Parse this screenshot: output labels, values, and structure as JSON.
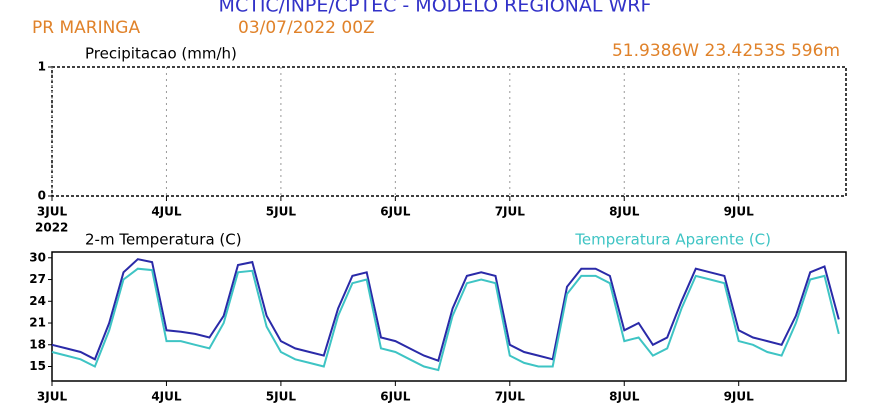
{
  "header": {
    "title": "MCTIC/INPE/CPTEC - MODELO REGIONAL WRF",
    "location": "PR MARINGA",
    "date": "03/07/2022 00Z",
    "coordinates": "51.9386W 23.4253S 596m",
    "year_label": "2022"
  },
  "chart_data": [
    {
      "type": "line",
      "title": "Precipitacao (mm/h)",
      "xlim": [
        0,
        166.5
      ],
      "ylim": [
        0,
        1
      ],
      "yticks": [
        0,
        1
      ],
      "grid": true,
      "xticks": [
        {
          "value": 0,
          "label": "3JUL"
        },
        {
          "value": 24,
          "label": "4JUL"
        },
        {
          "value": 48,
          "label": "5JUL"
        },
        {
          "value": 72,
          "label": "6JUL"
        },
        {
          "value": 96,
          "label": "7JUL"
        },
        {
          "value": 120,
          "label": "8JUL"
        },
        {
          "value": 144,
          "label": "9JUL"
        }
      ]
    },
    {
      "type": "line",
      "xlim": [
        0,
        166.5
      ],
      "ylim": [
        13,
        30.8
      ],
      "yticks": [
        15,
        18,
        21,
        24,
        27,
        30
      ],
      "grid": false,
      "xticks": [
        {
          "value": 0,
          "label": "3JUL"
        },
        {
          "value": 24,
          "label": "4JUL"
        },
        {
          "value": 48,
          "label": "5JUL"
        },
        {
          "value": 72,
          "label": "6JUL"
        },
        {
          "value": 96,
          "label": "7JUL"
        },
        {
          "value": 120,
          "label": "8JUL"
        },
        {
          "value": 144,
          "label": "9JUL"
        }
      ],
      "x": [
        0,
        3,
        6,
        9,
        12,
        15,
        18,
        21,
        24,
        27,
        30,
        33,
        36,
        39,
        42,
        45,
        48,
        51,
        54,
        57,
        60,
        63,
        66,
        69,
        72,
        75,
        78,
        81,
        84,
        87,
        90,
        93,
        96,
        99,
        102,
        105,
        108,
        111,
        114,
        117,
        120,
        123,
        126,
        129,
        132,
        135,
        138,
        141,
        144,
        147,
        150,
        153,
        156,
        159,
        162,
        165
      ],
      "series": [
        {
          "name": "2-m Temperatura (C)",
          "color": "#2a2aa8",
          "values": [
            18,
            17.5,
            17,
            16,
            21,
            28,
            29.8,
            29.4,
            20,
            19.8,
            19.5,
            19,
            22,
            29,
            29.4,
            22,
            18.5,
            17.5,
            17,
            16.5,
            23,
            27.5,
            28,
            19,
            18.5,
            17.5,
            16.5,
            15.8,
            23,
            27.5,
            28,
            27.5,
            18,
            17,
            16.5,
            16,
            26,
            28.5,
            28.5,
            27.5,
            20,
            21,
            18,
            19,
            24,
            28.5,
            28,
            27.5,
            20,
            19,
            18.5,
            18,
            22,
            28,
            28.8,
            21.5
          ]
        },
        {
          "name": "Temperatura Aparente (C)",
          "color": "#3ec4c4",
          "values": [
            17,
            16.5,
            16,
            15,
            20,
            27,
            28.5,
            28.3,
            18.5,
            18.5,
            18,
            17.5,
            21,
            28,
            28.2,
            20.5,
            17,
            16,
            15.5,
            15,
            22,
            26.5,
            27,
            17.5,
            17,
            16,
            15,
            14.5,
            22,
            26.5,
            27,
            26.5,
            16.5,
            15.5,
            15,
            15,
            25,
            27.5,
            27.5,
            26.5,
            18.5,
            19,
            16.5,
            17.5,
            23,
            27.5,
            27,
            26.5,
            18.5,
            18,
            17,
            16.5,
            21,
            27,
            27.5,
            19.5
          ]
        }
      ]
    }
  ]
}
